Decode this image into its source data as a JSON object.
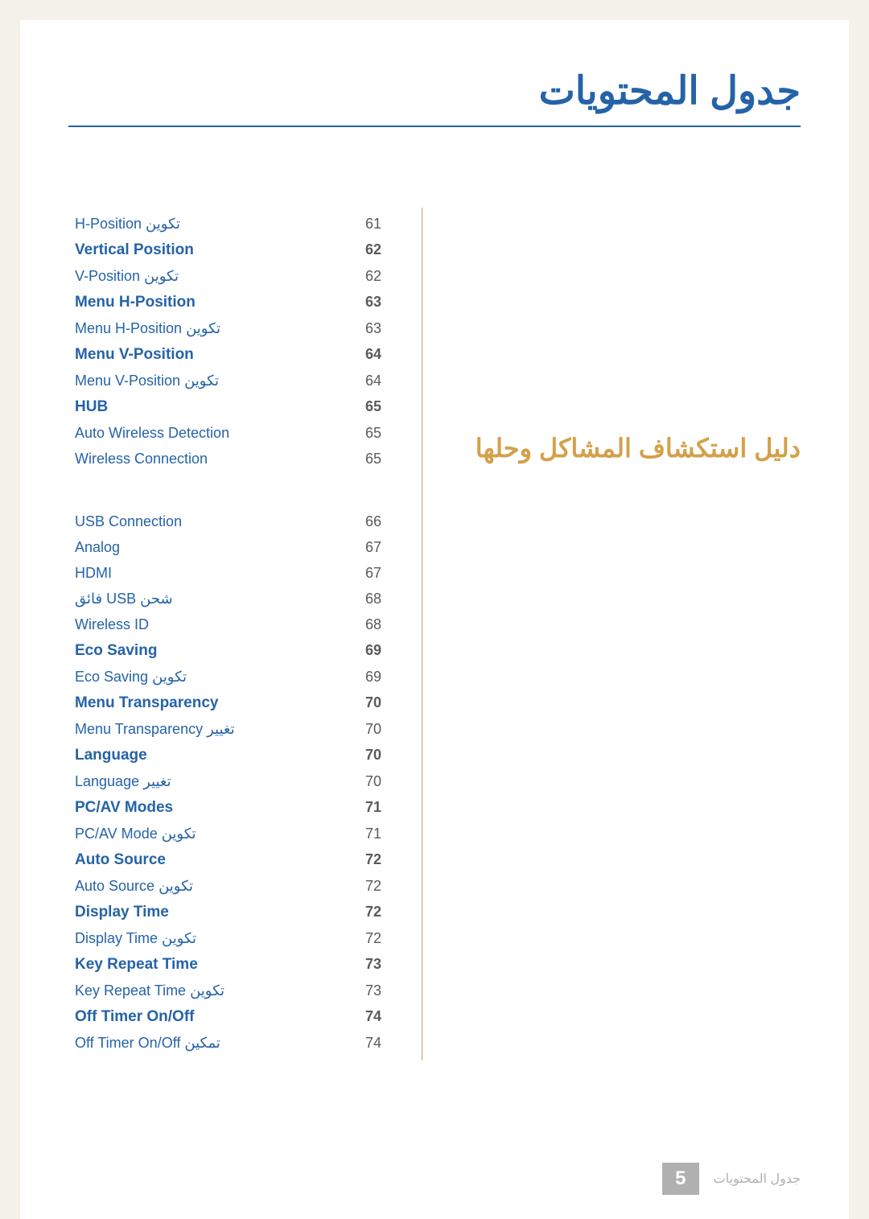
{
  "title": "جدول المحتويات",
  "section_heading": "دليل استكشاف المشاكل وحلها",
  "footer": {
    "label": "جدول المحتويات",
    "page": "5"
  },
  "colors": {
    "title": "#2563a8",
    "section": "#d4a04a",
    "link": "#2563a8",
    "page_num_text": "#5a5a5a",
    "footer_text": "#b0b0b0",
    "bg": "#f4f0ea",
    "page_bg": "#ffffff",
    "border": "#c9a25a"
  },
  "entries_top": [
    {
      "page": "61",
      "label_en": "H-Position",
      "label_ar": "تكوين",
      "bold": false
    },
    {
      "page": "62",
      "label_en": "Vertical Position",
      "label_ar": "",
      "bold": true
    },
    {
      "page": "62",
      "label_en": "V-Position",
      "label_ar": "تكوين",
      "bold": false
    },
    {
      "page": "63",
      "label_en": "Menu H-Position",
      "label_ar": "",
      "bold": true
    },
    {
      "page": "63",
      "label_en": "Menu H-Position",
      "label_ar": "تكوين",
      "bold": false
    },
    {
      "page": "64",
      "label_en": "Menu V-Position",
      "label_ar": "",
      "bold": true
    },
    {
      "page": "64",
      "label_en": "Menu V-Position",
      "label_ar": "تكوين",
      "bold": false
    },
    {
      "page": "65",
      "label_en": "HUB",
      "label_ar": "",
      "bold": true
    },
    {
      "page": "65",
      "label_en": "Auto Wireless Detection",
      "label_ar": "",
      "bold": false
    },
    {
      "page": "65",
      "label_en": "Wireless Connection",
      "label_ar": "",
      "bold": false
    }
  ],
  "entries_bottom": [
    {
      "page": "66",
      "label_en": "USB Connection",
      "label_ar": "",
      "bold": false
    },
    {
      "page": "67",
      "label_en": "Analog",
      "label_ar": "",
      "bold": false
    },
    {
      "page": "67",
      "label_en": "HDMI",
      "label_ar": "",
      "bold": false
    },
    {
      "page": "68",
      "label_en": "USB",
      "label_ar_pre": "شحن",
      "label_ar_post": "فائق",
      "bold": false
    },
    {
      "page": "68",
      "label_en": "Wireless ID",
      "label_ar": "",
      "bold": false
    },
    {
      "page": "69",
      "label_en": "Eco Saving",
      "label_ar": "",
      "bold": true
    },
    {
      "page": "69",
      "label_en": "Eco Saving",
      "label_ar": "تكوين",
      "bold": false
    },
    {
      "page": "70",
      "label_en": "Menu Transparency",
      "label_ar": "",
      "bold": true
    },
    {
      "page": "70",
      "label_en": "Menu Transparency",
      "label_ar": "تغيير",
      "bold": false
    },
    {
      "page": "70",
      "label_en": "Language",
      "label_ar": "",
      "bold": true
    },
    {
      "page": "70",
      "label_en": "Language",
      "label_ar": "تغيير",
      "bold": false
    },
    {
      "page": "71",
      "label_en": "PC/AV Modes",
      "label_ar": "",
      "bold": true
    },
    {
      "page": "71",
      "label_en": "PC/AV Mode",
      "label_ar": "تكوين",
      "bold": false
    },
    {
      "page": "72",
      "label_en": "Auto Source",
      "label_ar": "",
      "bold": true
    },
    {
      "page": "72",
      "label_en": "Auto Source",
      "label_ar": "تكوين",
      "bold": false
    },
    {
      "page": "72",
      "label_en": "Display Time",
      "label_ar": "",
      "bold": true
    },
    {
      "page": "72",
      "label_en": "Display Time",
      "label_ar": "تكوين",
      "bold": false
    },
    {
      "page": "73",
      "label_en": "Key Repeat Time",
      "label_ar": "",
      "bold": true
    },
    {
      "page": "73",
      "label_en": "Key Repeat Time",
      "label_ar": "تكوين",
      "bold": false
    },
    {
      "page": "74",
      "label_en": "Off Timer On/Off",
      "label_ar": "",
      "bold": true
    },
    {
      "page": "74",
      "label_en": "Off Timer On/Off",
      "label_ar": "تمكين",
      "bold": false
    }
  ]
}
